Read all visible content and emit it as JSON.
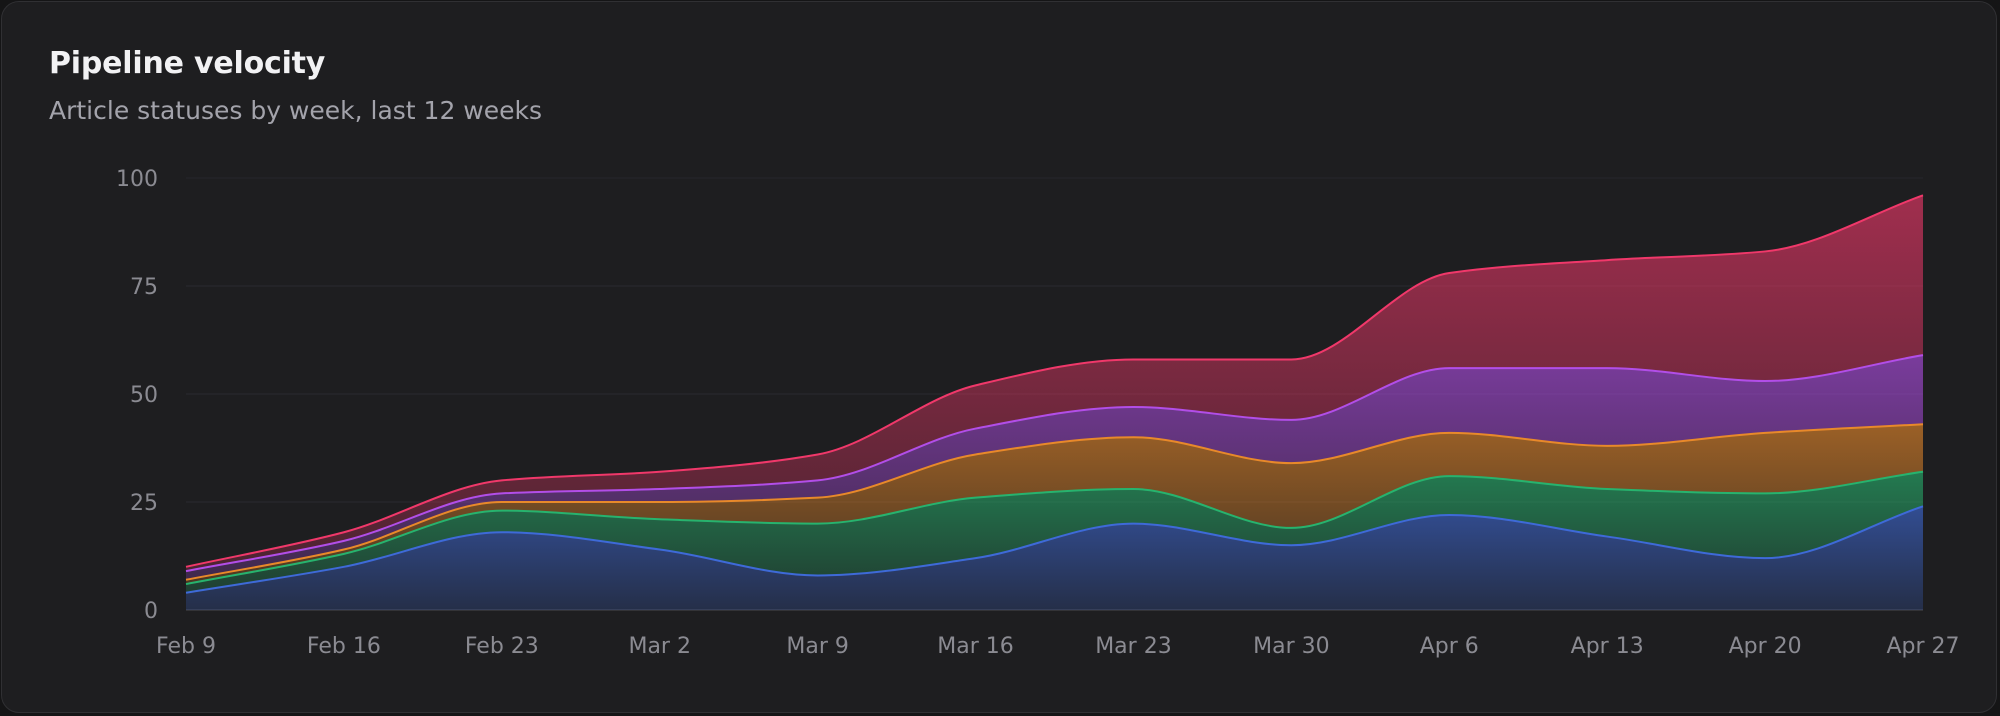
{
  "card": {
    "title": "Pipeline velocity",
    "subtitle": "Article statuses by week, last 12 weeks"
  },
  "chart_data": {
    "type": "area",
    "stacked": true,
    "smooth": true,
    "categories": [
      "Feb 9",
      "Feb 16",
      "Feb 23",
      "Mar 2",
      "Mar 9",
      "Mar 16",
      "Mar 23",
      "Mar 30",
      "Apr 6",
      "Apr 13",
      "Apr 20",
      "Apr 27"
    ],
    "series": [
      {
        "color": "#3e6ad8",
        "values": [
          4,
          10,
          18,
          14,
          8,
          12,
          20,
          15,
          22,
          17,
          12,
          24
        ]
      },
      {
        "color": "#27b36e",
        "values": [
          2,
          3,
          5,
          7,
          12,
          14,
          8,
          4,
          9,
          11,
          15,
          8
        ]
      },
      {
        "color": "#e8892a",
        "values": [
          1,
          1,
          2,
          4,
          6,
          10,
          12,
          15,
          10,
          10,
          14,
          11
        ]
      },
      {
        "color": "#b24ee8",
        "values": [
          2,
          2,
          2,
          3,
          4,
          6,
          7,
          10,
          15,
          18,
          12,
          16
        ]
      },
      {
        "color": "#f0386a",
        "values": [
          1,
          2,
          3,
          4,
          6,
          10,
          11,
          14,
          22,
          25,
          30,
          37
        ]
      }
    ],
    "y_ticks": [
      "0",
      "25",
      "50",
      "75",
      "100"
    ],
    "ylim": [
      0,
      100
    ],
    "grid": true,
    "legend": "none"
  }
}
